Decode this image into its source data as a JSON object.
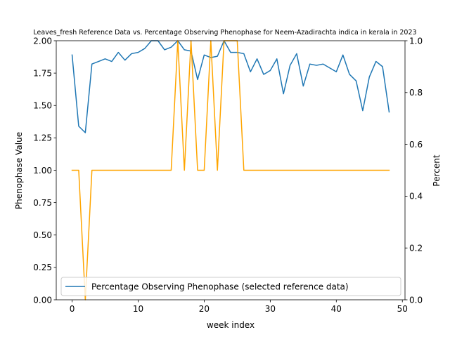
{
  "chart_data": {
    "type": "line",
    "title": "Leaves_fresh Reference Data vs. Percentage Observing Phenophase for Neem-Azadirachta indica in kerala in 2023",
    "xlabel": "week index",
    "ylabel_left": "Phenophase Value",
    "ylabel_right": "Percent",
    "xlim": [
      -2.4,
      50.4
    ],
    "ylim_left": [
      0,
      2
    ],
    "ylim_right": [
      0,
      1
    ],
    "x_ticks": [
      0,
      10,
      20,
      30,
      40,
      50
    ],
    "y_left_ticks": [
      0.0,
      0.25,
      0.5,
      0.75,
      1.0,
      1.25,
      1.5,
      1.75,
      2.0
    ],
    "y_right_ticks": [
      0.0,
      0.2,
      0.4,
      0.6,
      0.8,
      1.0
    ],
    "x_tick_labels": [
      "0",
      "10",
      "20",
      "30",
      "40",
      "50"
    ],
    "y_left_tick_labels": [
      "0.00",
      "0.25",
      "0.50",
      "0.75",
      "1.00",
      "1.25",
      "1.50",
      "1.75",
      "2.00"
    ],
    "y_right_tick_labels": [
      "0.0",
      "0.2",
      "0.4",
      "0.6",
      "0.8",
      "1.0"
    ],
    "grid": false,
    "legend_position": "lower center",
    "legend_label": "Percentage Observing Phenophase (selected reference data)",
    "series": [
      {
        "name": "Percentage Observing Phenophase (selected reference data)",
        "axis": "left",
        "color": "#1f77b4",
        "x": [
          0,
          1,
          2,
          3,
          4,
          5,
          6,
          7,
          8,
          9,
          10,
          11,
          12,
          13,
          14,
          15,
          16,
          17,
          18,
          19,
          20,
          21,
          22,
          23,
          24,
          25,
          26,
          27,
          28,
          29,
          30,
          31,
          32,
          33,
          34,
          35,
          36,
          37,
          38,
          39,
          40,
          41,
          42,
          43,
          44,
          45,
          46,
          47,
          48
        ],
        "values": [
          1.89,
          1.34,
          1.29,
          1.82,
          1.84,
          1.86,
          1.84,
          1.91,
          1.85,
          1.9,
          1.91,
          1.94,
          2.0,
          2.0,
          1.93,
          1.95,
          2.0,
          1.93,
          1.92,
          1.7,
          1.89,
          1.87,
          1.88,
          2.0,
          1.91,
          1.91,
          1.9,
          1.76,
          1.86,
          1.74,
          1.77,
          1.86,
          1.59,
          1.81,
          1.9,
          1.65,
          1.82,
          1.81,
          1.82,
          1.79,
          1.76,
          1.89,
          1.74,
          1.69,
          1.46,
          1.72,
          1.84,
          1.8,
          1.45
        ]
      },
      {
        "name": "",
        "axis": "right",
        "color": "#ffa500",
        "x": [
          0,
          1,
          2,
          3,
          4,
          5,
          6,
          7,
          8,
          9,
          10,
          11,
          12,
          13,
          14,
          15,
          16,
          17,
          18,
          19,
          20,
          21,
          22,
          23,
          24,
          25,
          26,
          27,
          28,
          29,
          30,
          31,
          32,
          33,
          34,
          35,
          36,
          37,
          38,
          39,
          40,
          41,
          42,
          43,
          44,
          45,
          46,
          47,
          48
        ],
        "values": [
          0.5,
          0.5,
          0.0,
          0.5,
          0.5,
          0.5,
          0.5,
          0.5,
          0.5,
          0.5,
          0.5,
          0.5,
          0.5,
          0.5,
          0.5,
          0.5,
          1.0,
          0.5,
          1.0,
          0.5,
          0.5,
          1.0,
          0.5,
          1.0,
          1.0,
          1.0,
          0.5,
          0.5,
          0.5,
          0.5,
          0.5,
          0.5,
          0.5,
          0.5,
          0.5,
          0.5,
          0.5,
          0.5,
          0.5,
          0.5,
          0.5,
          0.5,
          0.5,
          0.5,
          0.5,
          0.5,
          0.5,
          0.5,
          0.5
        ]
      }
    ]
  }
}
